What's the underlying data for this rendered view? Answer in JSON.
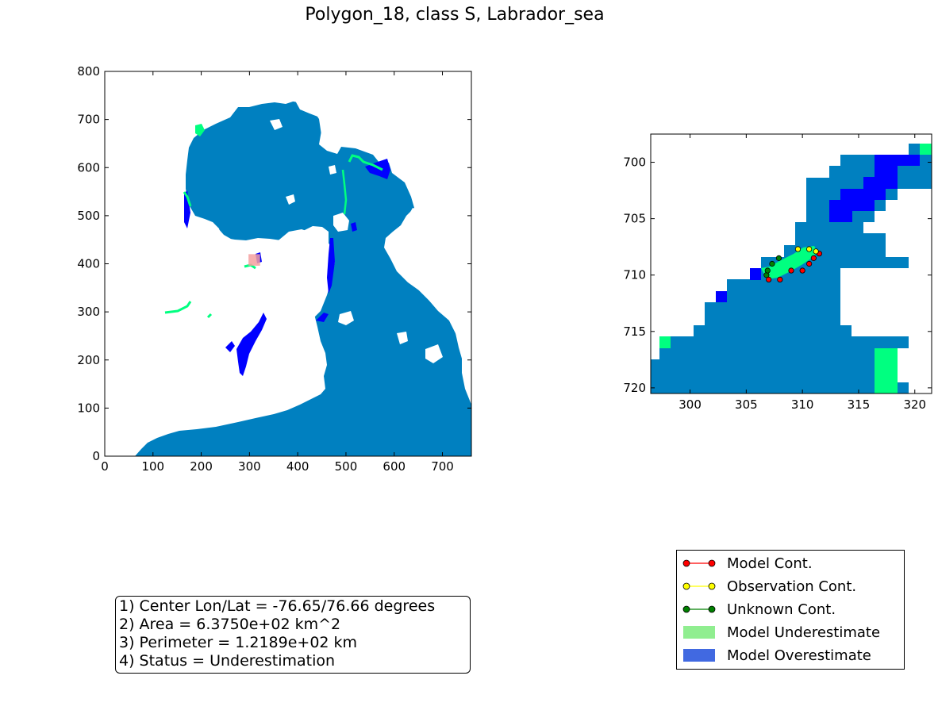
{
  "figure": {
    "title": "Polygon_18, class S, Labrador_sea",
    "colors": {
      "ocean": "#0080c0",
      "blue": "#0000ff",
      "green": "#00ff80",
      "highlight": "#f4a0a0",
      "model_marker": "#ff0000",
      "obs_marker": "#ffff00",
      "unknown_marker": "#008000",
      "underestimate_patch": "#90ee90",
      "overestimate_patch": "#4169e1"
    }
  },
  "chart_data": [
    {
      "type": "heatmap",
      "title": "",
      "xlabel": "",
      "ylabel": "",
      "xlim": [
        0,
        760
      ],
      "ylim": [
        0,
        800
      ],
      "xticks": [
        0,
        100,
        200,
        300,
        400,
        500,
        600,
        700
      ],
      "yticks": [
        0,
        100,
        200,
        300,
        400,
        500,
        600,
        700,
        800
      ],
      "xtick_labels": [
        "0",
        "100",
        "200",
        "300",
        "400",
        "500",
        "600",
        "700"
      ],
      "ytick_labels": [
        "0",
        "100",
        "200",
        "300",
        "400",
        "500",
        "600",
        "700",
        "800"
      ],
      "highlight_box": {
        "x": [
          298,
          322
        ],
        "y": [
          396,
          420
        ]
      }
    },
    {
      "type": "heatmap",
      "title": "",
      "xlabel": "",
      "ylabel": "",
      "xlim": [
        296.5,
        321.5
      ],
      "ylim": [
        720.5,
        697.5
      ],
      "y_inverted": true,
      "xticks": [
        300,
        305,
        310,
        315,
        320
      ],
      "yticks": [
        700,
        705,
        710,
        715,
        720
      ],
      "xtick_labels": [
        "300",
        "305",
        "310",
        "315",
        "320"
      ],
      "ytick_labels": [
        "700",
        "705",
        "710",
        "715",
        "720"
      ],
      "contours": {
        "model": [
          [
            307,
            710.4
          ],
          [
            308,
            710.4
          ],
          [
            309,
            709.6
          ],
          [
            310,
            709.6
          ],
          [
            310.6,
            709.0
          ],
          [
            311,
            708.5
          ],
          [
            311.5,
            708.1
          ]
        ],
        "observation": [
          [
            309.6,
            707.7
          ],
          [
            310.6,
            707.7
          ],
          [
            311.2,
            707.9
          ]
        ],
        "unknown": [
          [
            306.8,
            710.0
          ],
          [
            306.9,
            709.6
          ],
          [
            307.3,
            709.0
          ],
          [
            307.9,
            708.5
          ]
        ]
      }
    }
  ],
  "info": {
    "line1": "1) Center Lon/Lat = -76.65/76.66 degrees",
    "line2": "2) Area = 6.3750e+02 km^2",
    "line3": "3) Perimeter = 1.2189e+02 km",
    "line4": "4) Status = Underestimation"
  },
  "legend": {
    "placement": "lower-right",
    "items": [
      {
        "label": "Model Cont.",
        "kind": "line",
        "color": "#ff0000"
      },
      {
        "label": "Observation Cont.",
        "kind": "line",
        "color": "#ffff00"
      },
      {
        "label": "Unknown Cont.",
        "kind": "line",
        "color": "#008000"
      },
      {
        "label": "Model Underestimate",
        "kind": "patch",
        "color": "#90ee90"
      },
      {
        "label": "Model Overestimate",
        "kind": "patch",
        "color": "#4169e1"
      }
    ]
  }
}
